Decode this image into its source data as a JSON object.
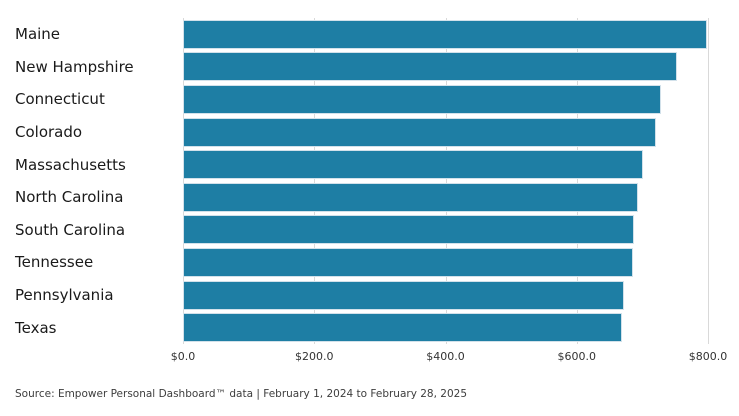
{
  "chart_data": {
    "type": "bar",
    "orientation": "horizontal",
    "categories": [
      "Maine",
      "New Hampshire",
      "Connecticut",
      "Colorado",
      "Massachusetts",
      "North Carolina",
      "South Carolina",
      "Tennessee",
      "Pennsylvania",
      "Texas"
    ],
    "values": [
      798,
      752,
      728,
      720,
      701,
      693,
      687,
      686,
      672,
      669
    ],
    "title": "",
    "xlabel": "",
    "ylabel": "",
    "xlim": [
      0,
      800
    ],
    "x_ticks": [
      0,
      200,
      400,
      600,
      800
    ],
    "x_tick_labels": [
      "$0.0",
      "$200.0",
      "$400.0",
      "$600.0",
      "$800.0"
    ],
    "grid": "vertical",
    "legend": "none",
    "bar_color": "#1e7ea4"
  },
  "colors": {
    "bar": "#1e7ea4",
    "bar_edge": "#d2e1ea",
    "grid": "#d9d9d9",
    "category_text": "#1a1a1a",
    "tick_text": "#333333",
    "source_text": "#3d3d3d",
    "background": "#ffffff"
  },
  "footer": {
    "source_text": "Source: Empower Personal Dashboard™ data | February 1, 2024 to February 28, 2025"
  }
}
